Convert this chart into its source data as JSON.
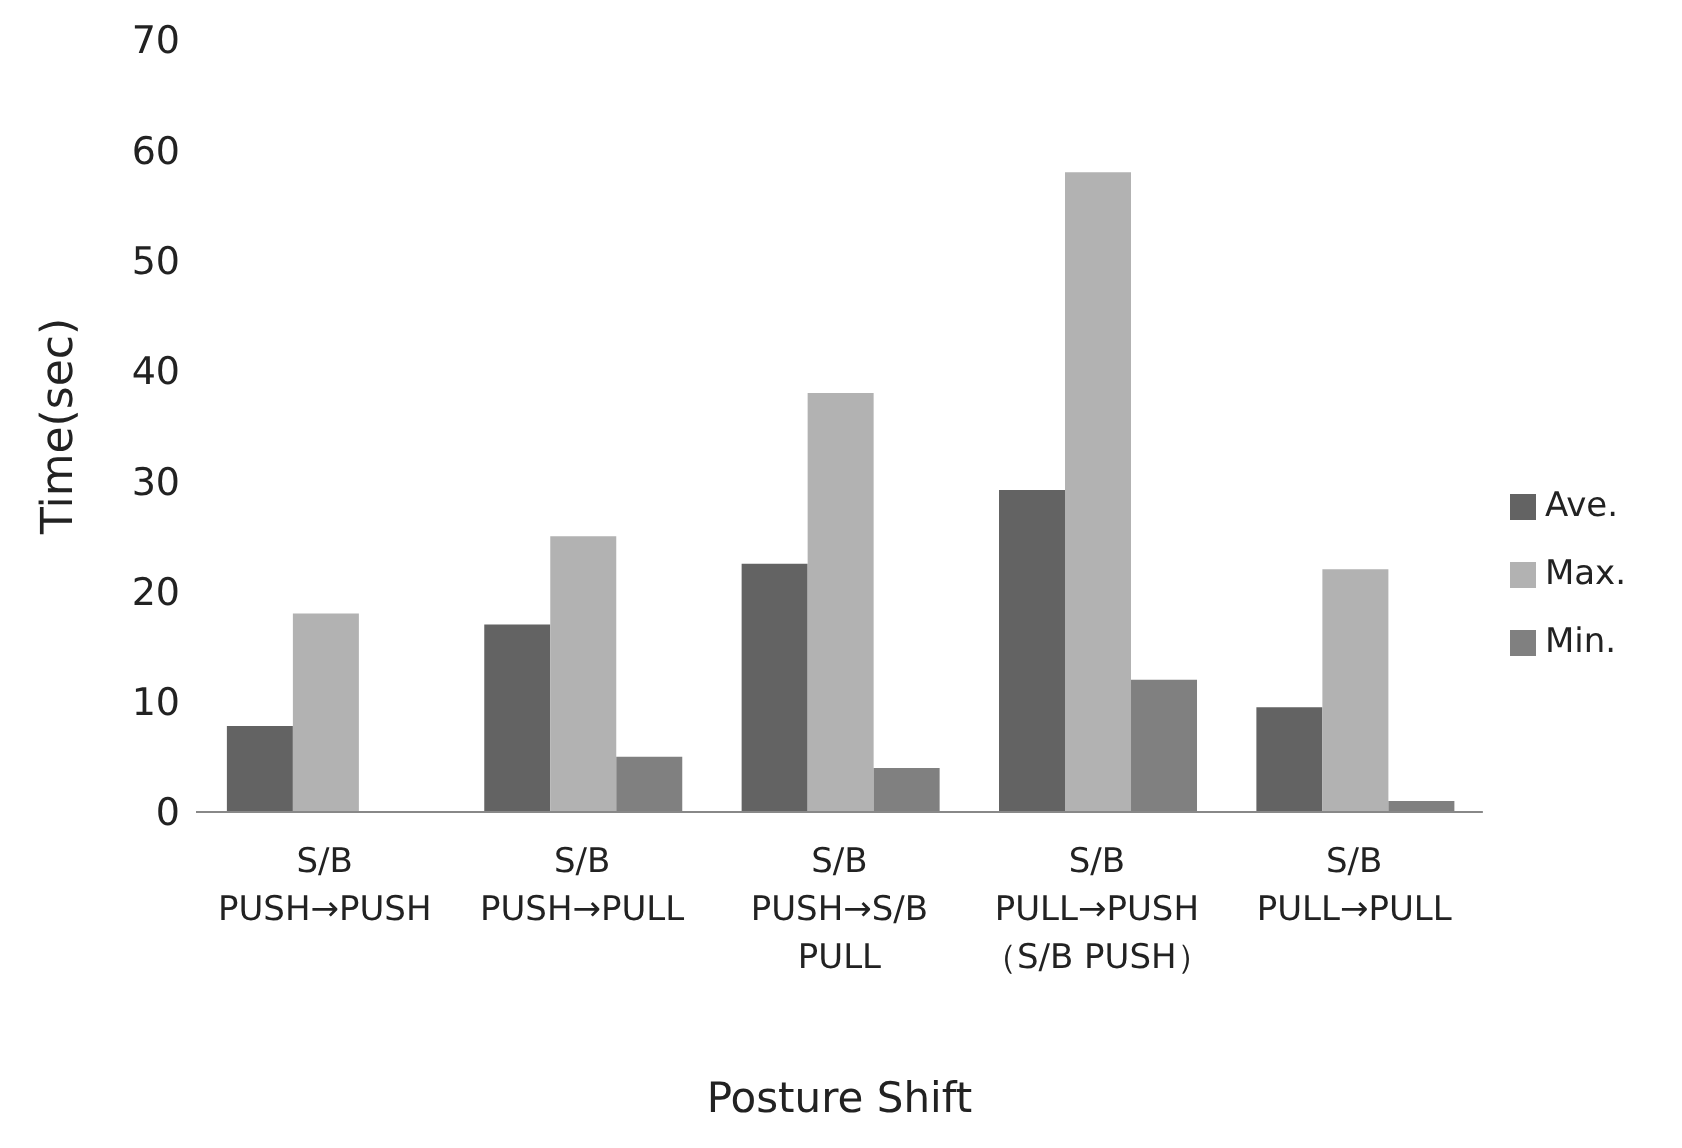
{
  "chart_data": {
    "type": "bar",
    "xlabel": "Posture Shift",
    "ylabel": "Time(sec)",
    "categories": [
      "S/B\nPUSH→PUSH",
      "S/B\nPUSH→PULL",
      "S/B\nPUSH→S/B\nPULL",
      "S/B\nPULL→PUSH\n（S/B PUSH）",
      "S/B\nPULL→PULL"
    ],
    "series": [
      {
        "name": "Ave.",
        "color": "#636363",
        "values": [
          7.8,
          17,
          22.5,
          29.2,
          9.5
        ]
      },
      {
        "name": "Max.",
        "color": "#b2b2b2",
        "values": [
          18,
          25,
          38,
          58,
          22
        ]
      },
      {
        "name": "Min.",
        "color": "#808080",
        "values": [
          0,
          5,
          4,
          12,
          1
        ]
      }
    ],
    "ylim": [
      0,
      70
    ],
    "yticks": [
      0,
      10,
      20,
      30,
      40,
      50,
      60,
      70
    ],
    "grid": false,
    "legend": "right"
  }
}
